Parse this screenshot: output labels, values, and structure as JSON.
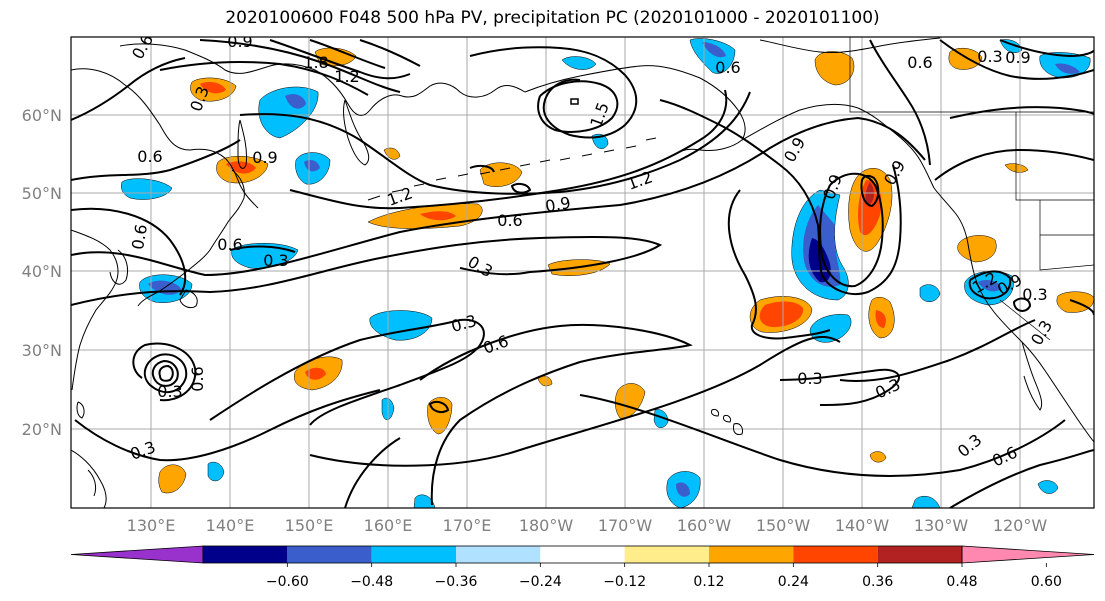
{
  "title": "2020100600 F048 500 hPa PV, precipitation PC (2020101000 - 2020101100)",
  "map": {
    "lat_labels": [
      "60°N",
      "50°N",
      "40°N",
      "30°N",
      "20°N"
    ],
    "lon_labels": [
      "130°E",
      "140°E",
      "150°E",
      "160°E",
      "170°E",
      "180°W",
      "170°W",
      "160°W",
      "150°W",
      "140°W",
      "130°W",
      "120°W"
    ],
    "label_color": "#808080",
    "grid_color": "#aaaaaa"
  },
  "contour_labels": [
    "0.6",
    "0.9",
    "1.8",
    "1.2",
    "0.3",
    "1.5",
    "0.6",
    "0.9",
    "0.6",
    "0.6",
    "0.9",
    "0.3",
    "0.6",
    "0.9",
    "1.2",
    "1.2",
    "0.9",
    "0.6",
    "0.3",
    "0.3",
    "0.6",
    "0.3",
    "0.6",
    "0.3",
    "0.9",
    "0.9",
    "1.2",
    "0.3",
    "0.3",
    "0.3",
    "0.3",
    "0.6",
    "0.3",
    "0.3",
    "0.9",
    "0.6"
  ],
  "colorbar": {
    "tick_labels": [
      "−0.60",
      "−0.48",
      "−0.36",
      "−0.24",
      "−0.12",
      "0.12",
      "0.24",
      "0.36",
      "0.48",
      "0.60"
    ],
    "colors": [
      "#9932cc",
      "#00008b",
      "#3a5fcd",
      "#00bfff",
      "#b0e2ff",
      "#ffffff",
      "#ffec8b",
      "#ffa500",
      "#ff4500",
      "#b22222",
      "#ff88b0"
    ]
  }
}
